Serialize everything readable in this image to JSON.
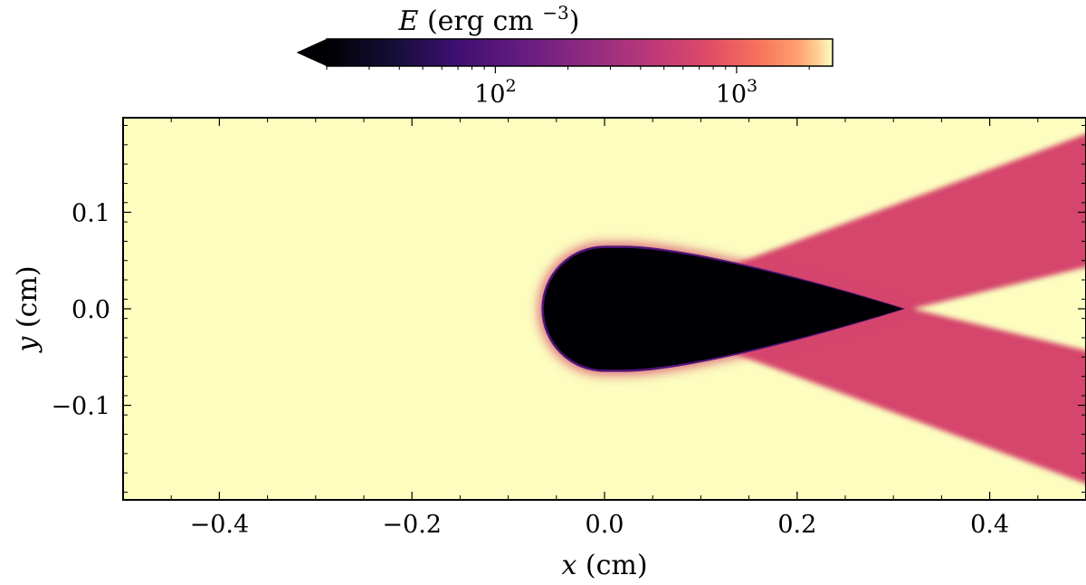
{
  "chart_data": {
    "type": "heatmap",
    "title": "",
    "xlabel": {
      "var": "x",
      "unit": " (cm)"
    },
    "ylabel": {
      "var": "y",
      "unit": " (cm)"
    },
    "xlim": [
      -0.5,
      0.5
    ],
    "ylim": [
      -0.198,
      0.198
    ],
    "xticks": [
      -0.4,
      -0.2,
      0.0,
      0.2,
      0.4
    ],
    "xtick_labels": [
      "−0.4",
      "−0.2",
      "0.0",
      "0.2",
      "0.4"
    ],
    "yticks": [
      0.1,
      0.0,
      -0.1
    ],
    "ytick_labels": [
      "0.1",
      "0.0",
      "−0.1"
    ],
    "grid": false,
    "colorbar": {
      "label": {
        "var": "E",
        "unit": " (erg cm ",
        "exponent": "−3",
        "close": ")"
      },
      "colormap": "magma",
      "scale": "log",
      "range": [
        20,
        2500
      ],
      "extend": "min",
      "placement": "top",
      "ticks": [
        100,
        1000
      ],
      "tick_labels": [
        {
          "base": "10",
          "exp": "2"
        },
        {
          "base": "10",
          "exp": "3"
        }
      ],
      "minor_ticks": [
        20,
        30,
        40,
        50,
        60,
        70,
        80,
        90,
        200,
        300,
        400,
        500,
        600,
        700,
        800,
        900,
        2000
      ]
    },
    "field": {
      "background_value": 2500,
      "shadow_value": 20,
      "wedge_value": 650,
      "shadow_region": {
        "description_free": true,
        "nose_center": [
          0.0,
          0.0
        ],
        "radius": 0.063,
        "tail_tip": [
          0.31,
          0.0
        ]
      },
      "wedge_region": {
        "apex": [
          0.01,
          0.0
        ],
        "outer_slope": 0.37,
        "inner_apex_x": 0.32,
        "inner_slope": 0.24
      }
    }
  }
}
